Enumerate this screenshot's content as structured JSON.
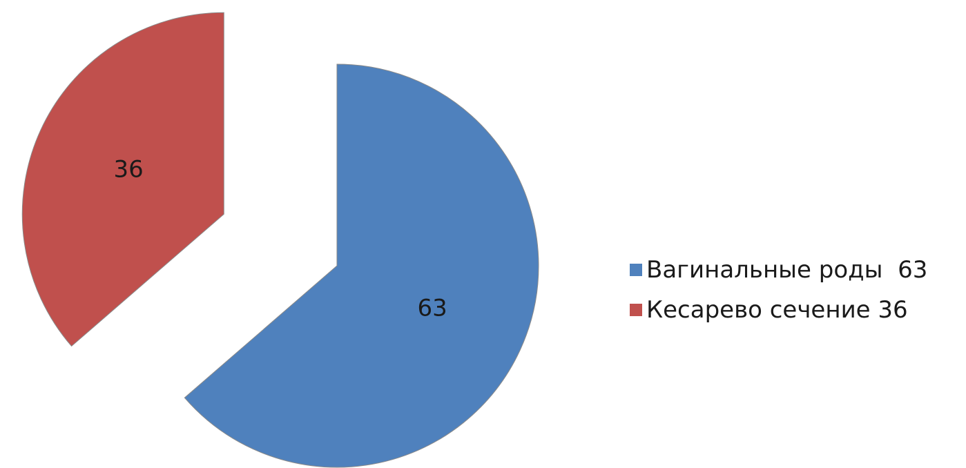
{
  "chart_data": {
    "type": "pie",
    "categories": [
      "Вагинальные роды  63",
      "Кесарево сечение 36"
    ],
    "values": [
      63,
      36
    ],
    "data_labels": [
      "63",
      "36"
    ],
    "colors": [
      "#4f81bd",
      "#c0504d"
    ],
    "exploded": true,
    "legend_position": "right",
    "title": ""
  }
}
